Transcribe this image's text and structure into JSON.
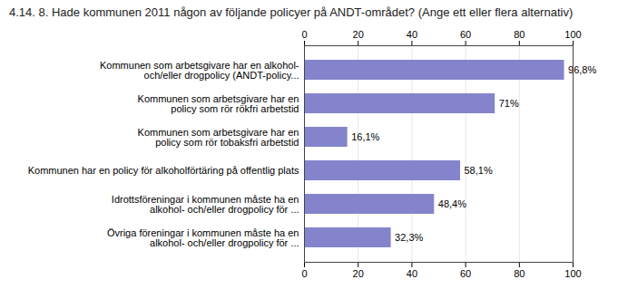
{
  "chart_data": {
    "type": "bar",
    "orientation": "horizontal",
    "title": "4.14. 8. Hade kommunen 2011 någon av följande policyer på ANDT-området? (Ange ett eller flera alternativ)",
    "categories": [
      "Övriga föreningar i kommunen måste ha en\nalkohol- och/eller drogpolicy för ...",
      "Idrottsföreningar i kommunen måste ha en\nalkohol- och/eller drogpolicy för ...",
      "Kommunen har en policy för alkoholförtäring på offentlig plats",
      "Kommunen som arbetsgivare har en\npolicy som rör tobaksfri arbetstid",
      "Kommunen som arbetsgivare har en\npolicy som rör rökfri arbetstid",
      "Kommunen som arbetsgivare har en alkohol-\noch/eller drogpolicy (ANDT-policy..."
    ],
    "values": [
      32.3,
      48.4,
      58.1,
      16.1,
      71.0,
      96.8
    ],
    "value_labels": [
      "32,3%",
      "48,4%",
      "58,1%",
      "16,1%",
      "71%",
      "96,8%"
    ],
    "data_labels": true,
    "color": "#8484cc",
    "xlim": [
      0,
      100
    ],
    "xticks": [
      0,
      20,
      40,
      60,
      80,
      100
    ],
    "grid": true
  }
}
